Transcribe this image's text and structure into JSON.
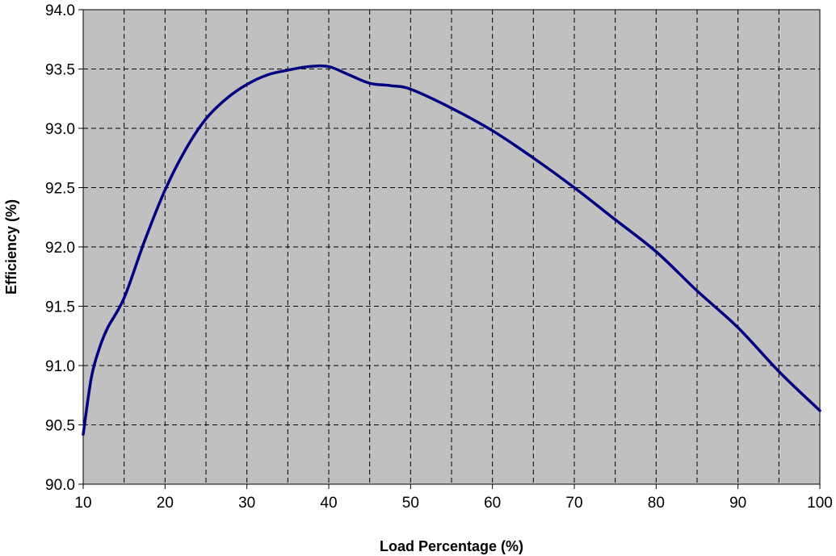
{
  "colors": {
    "plot_background": "#c0c0c0",
    "line": "#000080",
    "grid": "#000000",
    "page_background": "#ffffff"
  },
  "chart_data": {
    "type": "line",
    "title": "",
    "xlabel": "Load Percentage (%)",
    "ylabel": "Efficiency  (%)",
    "xlim": [
      10,
      100
    ],
    "ylim": [
      90.0,
      94.0
    ],
    "x_ticks": [
      "10",
      "20",
      "30",
      "40",
      "50",
      "60",
      "70",
      "80",
      "90",
      "100"
    ],
    "y_ticks": [
      "90.0",
      "90.5",
      "91.0",
      "91.5",
      "92.0",
      "92.5",
      "93.0",
      "93.5",
      "94.0"
    ],
    "x_grid_step": 5,
    "grid": true,
    "grid_style": "dashed",
    "legend": "none",
    "series": [
      {
        "x": [
          10,
          11,
          12,
          13,
          15,
          17.5,
          20,
          22.5,
          25,
          27.5,
          30,
          32.5,
          35,
          37.5,
          40,
          42.5,
          45,
          47.5,
          50,
          55,
          60,
          65,
          70,
          75,
          80,
          85,
          90,
          95,
          100
        ],
        "values": [
          90.42,
          90.9,
          91.15,
          91.32,
          91.57,
          92.05,
          92.48,
          92.82,
          93.08,
          93.25,
          93.37,
          93.45,
          93.49,
          93.52,
          93.52,
          93.45,
          93.38,
          93.36,
          93.33,
          93.17,
          92.98,
          92.75,
          92.5,
          92.23,
          91.96,
          91.63,
          91.32,
          90.95,
          90.62
        ]
      }
    ]
  }
}
